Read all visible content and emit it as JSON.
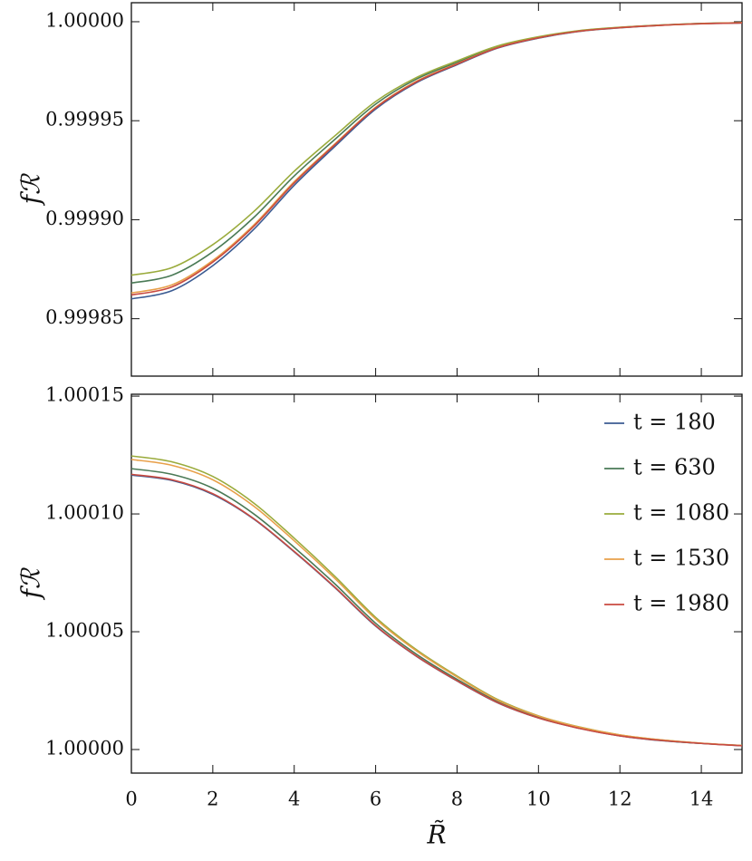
{
  "chart_data": [
    {
      "type": "line",
      "ylabel": "fℛ",
      "x": [
        0,
        1,
        2,
        3,
        4,
        5,
        6,
        7,
        8,
        9,
        10,
        11,
        12,
        13,
        14,
        15
      ],
      "series": [
        {
          "color": "#3b5b92",
          "values": [
            0.99986,
            0.9998642,
            0.9998768,
            0.999895,
            0.9999174,
            0.999937,
            0.9999559,
            0.9999692,
            0.9999783,
            0.9999867,
            0.9999917,
            0.9999951,
            0.9999969,
            0.9999982,
            0.999999,
            0.9999994
          ]
        },
        {
          "color": "#4a7a56",
          "values": [
            0.999868,
            0.999872,
            0.9998838,
            0.999901,
            0.9999221,
            0.9999406,
            0.9999584,
            0.999971,
            0.9999795,
            0.9999875,
            0.9999922,
            0.9999954,
            0.9999971,
            0.9999983,
            0.9999991,
            0.9999995
          ]
        },
        {
          "color": "#9aab3c",
          "values": [
            0.999872,
            0.9998758,
            0.9998874,
            0.999904,
            0.9999245,
            0.9999424,
            0.9999597,
            0.9999718,
            0.9999802,
            0.9999878,
            0.9999924,
            0.9999955,
            0.9999972,
            0.9999983,
            0.9999991,
            0.9999995
          ]
        },
        {
          "color": "#e8a04a",
          "values": [
            0.999863,
            0.9998671,
            0.9998794,
            0.9998972,
            0.9999192,
            0.9999383,
            0.9999568,
            0.9999699,
            0.9999788,
            0.999987,
            0.9999919,
            0.9999952,
            0.999997,
            0.9999982,
            0.999999,
            0.9999995
          ]
        },
        {
          "color": "#c94a40",
          "values": [
            0.999862,
            0.9998661,
            0.9998786,
            0.9998965,
            0.9999186,
            0.9999379,
            0.9999565,
            0.9999696,
            0.9999786,
            0.9999869,
            0.9999919,
            0.9999952,
            0.999997,
            0.9999982,
            0.999999,
            0.9999994
          ]
        }
      ],
      "xlim": [
        0,
        15
      ],
      "xticks": [
        0,
        2,
        4,
        6,
        8,
        10,
        12,
        14
      ],
      "ylim": [
        0.999821,
        1.0000096
      ],
      "yticks": [
        0.99985,
        {
          "value": 0.9999,
          "label": "0.99990"
        },
        0.99995,
        {
          "value": 1,
          "label": "1.00000"
        }
      ]
    },
    {
      "type": "line",
      "xlabel": "R̃",
      "ylabel": "fℛ",
      "legend": "upper right",
      "x": [
        0,
        1,
        2,
        3,
        4,
        5,
        6,
        7,
        8,
        9,
        10,
        11,
        12,
        13,
        14,
        15
      ],
      "series": [
        {
          "name": "t = 180",
          "color": "#3b5b92",
          "values": [
            1.0001165,
            1.0001142,
            1.0001083,
            1.0000979,
            1.0000839,
            1.0000687,
            1.0000524,
            1.0000396,
            1.0000291,
            1.0000198,
            1.0000134,
            1.000009,
            1.0000058,
            1.0000038,
            1.0000026,
            1.0000016
          ]
        },
        {
          "name": "t = 630",
          "color": "#4a7a56",
          "values": [
            1.0001192,
            1.0001168,
            1.0001109,
            1.0001001,
            1.0000858,
            1.0000703,
            1.0000536,
            1.0000405,
            1.0000298,
            1.0000203,
            1.0000137,
            1.0000092,
            1.000006,
            1.0000039,
            1.0000026,
            1.0000017
          ]
        },
        {
          "name": "t = 1080",
          "color": "#9aab3c",
          "values": [
            1.0001246,
            1.0001221,
            1.0001159,
            1.0001047,
            1.0000897,
            1.0000735,
            1.0000561,
            1.0000424,
            1.0000312,
            1.0000212,
            1.0000143,
            1.0000096,
            1.0000062,
            1.0000041,
            1.0000027,
            1.0000017
          ]
        },
        {
          "name": "t = 1530",
          "color": "#e8a04a",
          "values": [
            1.0001231,
            1.0001206,
            1.0001145,
            1.0001034,
            1.0000886,
            1.0000726,
            1.0000554,
            1.0000419,
            1.0000308,
            1.0000209,
            1.0000142,
            1.0000095,
            1.0000062,
            1.0000041,
            1.0000027,
            1.0000017
          ]
        },
        {
          "name": "t = 1980",
          "color": "#c94a40",
          "values": [
            1.0001168,
            1.0001145,
            1.0001086,
            1.0000981,
            1.0000841,
            1.0000689,
            1.0000526,
            1.0000397,
            1.0000292,
            1.0000199,
            1.0000134,
            1.000009,
            1.0000058,
            1.0000039,
            1.0000026,
            1.0000016
          ]
        }
      ],
      "xlim": [
        0,
        15
      ],
      "xticks": [
        0,
        2,
        4,
        6,
        8,
        10,
        12,
        14
      ],
      "ylim": [
        0.99999,
        1.0001508
      ],
      "yticks": [
        {
          "value": 1,
          "label": "1.00000"
        },
        1.00005,
        {
          "value": 1.0001,
          "label": "1.00010"
        },
        1.00015
      ]
    }
  ]
}
